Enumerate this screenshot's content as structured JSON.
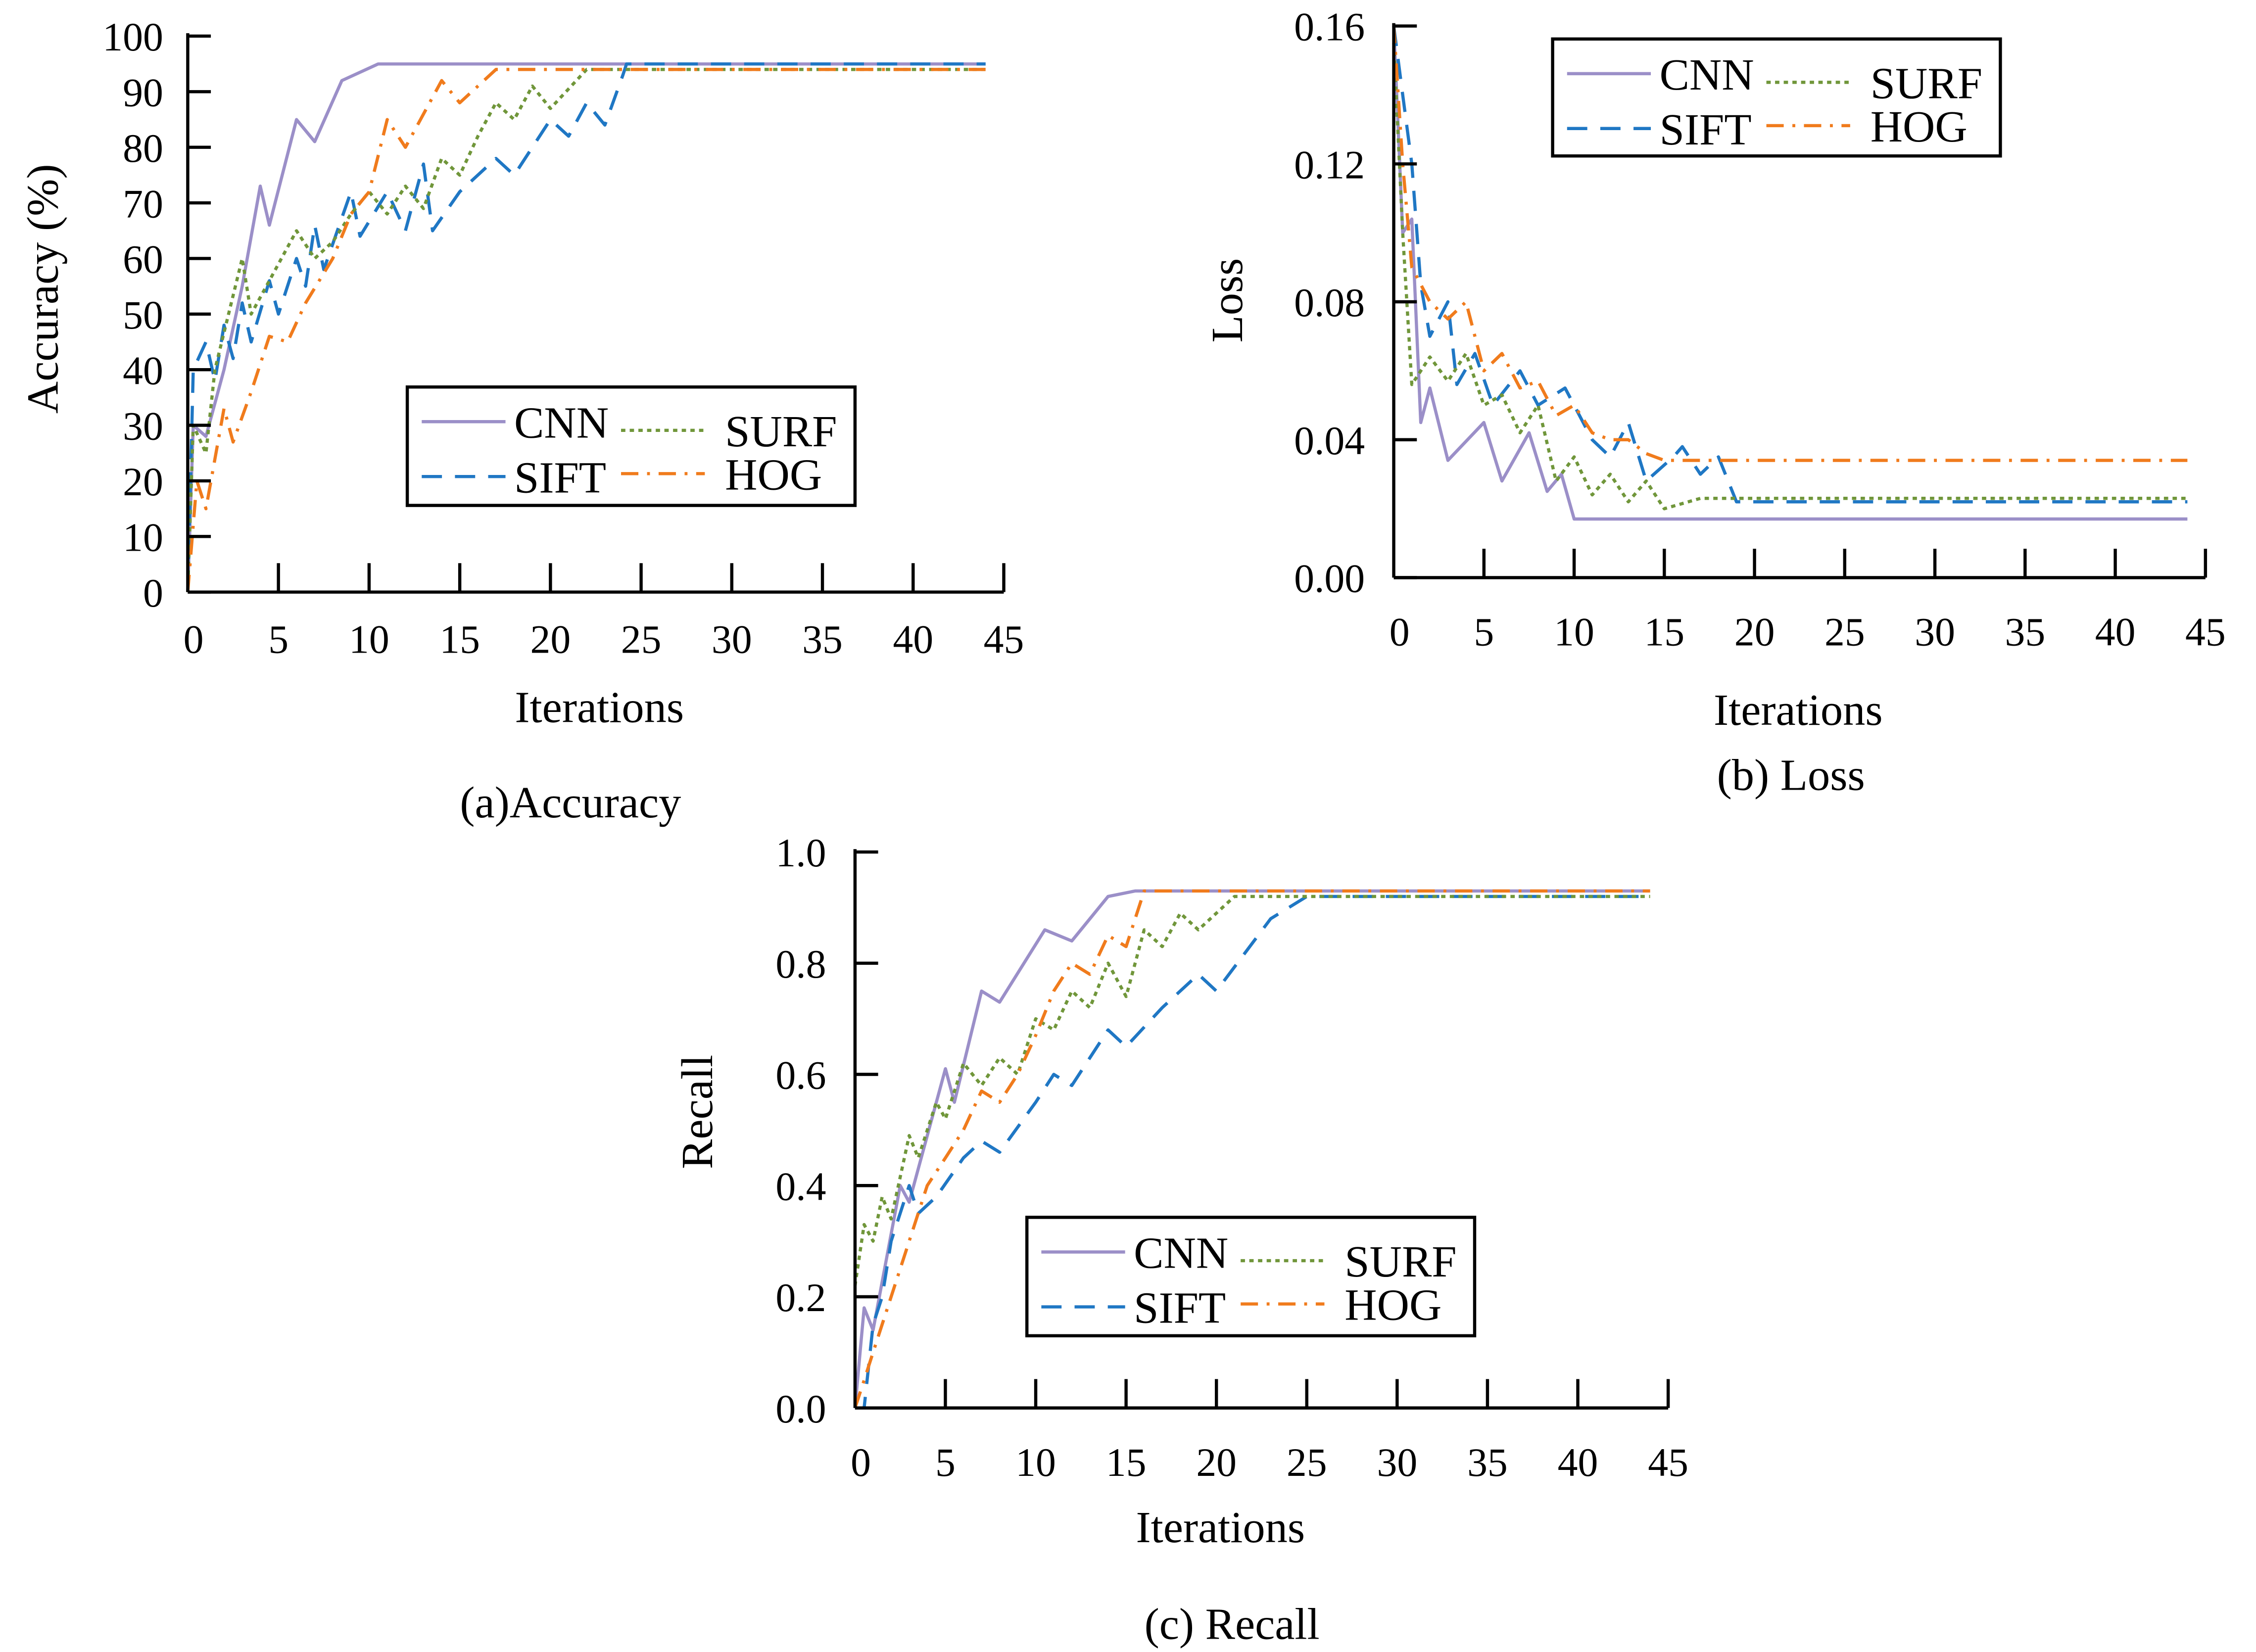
{
  "chart_data": [
    {
      "type": "line",
      "title": "(a)Accuracy",
      "xlabel": "Iterations",
      "ylabel": "Accuracy (%)",
      "xlim": [
        0,
        45
      ],
      "ylim": [
        0,
        100
      ],
      "xticks": [
        0,
        5,
        10,
        15,
        20,
        25,
        30,
        35,
        40,
        45
      ],
      "yticks": [
        0,
        10,
        20,
        30,
        40,
        50,
        60,
        70,
        80,
        90,
        100
      ],
      "ytick_labels": [
        "0",
        "10",
        "20",
        "30",
        "40",
        "50",
        "60",
        "70",
        "80",
        "90",
        "100"
      ],
      "legend": "center-right",
      "grid": false,
      "series": [
        {
          "name": "CNN",
          "color": "#9b8fc8",
          "style": "solid",
          "x": [
            0,
            0.3,
            1,
            2,
            3,
            4,
            4.5,
            6,
            7,
            8.5,
            10.5,
            44
          ],
          "y": [
            0,
            30,
            28,
            40,
            55,
            73,
            66,
            85,
            81,
            92,
            95,
            95
          ]
        },
        {
          "name": "SIFT",
          "color": "#1f77c4",
          "style": "dashed",
          "x": [
            0,
            0.3,
            1,
            1.5,
            2,
            2.5,
            3,
            3.5,
            4.5,
            5,
            6,
            6.5,
            7,
            7.5,
            9,
            9.5,
            11,
            12,
            13,
            13.5,
            15,
            17,
            18,
            20,
            21,
            22,
            23,
            24,
            24.2,
            44
          ],
          "y": [
            0,
            40,
            45,
            38,
            48,
            42,
            52,
            45,
            56,
            50,
            60,
            55,
            66,
            58,
            72,
            64,
            72,
            65,
            77,
            65,
            72,
            78,
            75,
            85,
            82,
            88,
            84,
            93,
            95,
            95
          ]
        },
        {
          "name": "SURF",
          "color": "#70963a",
          "style": "dotted",
          "x": [
            0,
            0.3,
            1,
            1.5,
            3,
            3.5,
            6,
            7,
            8,
            9,
            10,
            11,
            12,
            13,
            14,
            15,
            16,
            17,
            18,
            19,
            20,
            22,
            44
          ],
          "y": [
            0,
            30,
            25,
            40,
            60,
            50,
            65,
            60,
            63,
            68,
            72,
            68,
            73,
            69,
            78,
            75,
            82,
            88,
            85,
            91,
            87,
            94,
            94
          ]
        },
        {
          "name": "HOG",
          "color": "#f07b1c",
          "style": "dashdot",
          "x": [
            0,
            0.5,
            1,
            2,
            2.5,
            3.5,
            4.5,
            5.5,
            6.5,
            8,
            9,
            10,
            11,
            12,
            14,
            15,
            17,
            44
          ],
          "y": [
            0,
            20,
            15,
            33,
            27,
            36,
            46,
            45,
            52,
            60,
            68,
            72,
            85,
            80,
            92,
            88,
            94,
            94
          ]
        }
      ]
    },
    {
      "type": "line",
      "title": "(b) Loss",
      "xlabel": "Iterations",
      "ylabel": "Loss",
      "xlim": [
        0,
        45
      ],
      "ylim": [
        0,
        0.16
      ],
      "xticks": [
        0,
        5,
        10,
        15,
        20,
        25,
        30,
        35,
        40,
        45
      ],
      "yticks": [
        0,
        0.04,
        0.08,
        0.12,
        0.16
      ],
      "ytick_labels": [
        "0.00",
        "0.04",
        "0.08",
        "0.12",
        "0.16"
      ],
      "legend": "top-center",
      "grid": false,
      "series": [
        {
          "name": "CNN",
          "color": "#9b8fc8",
          "style": "solid",
          "x": [
            0,
            0.5,
            1,
            1.5,
            2,
            3,
            5,
            6,
            7.5,
            8.5,
            9.3,
            10,
            44
          ],
          "y": [
            0.16,
            0.1,
            0.104,
            0.045,
            0.055,
            0.034,
            0.045,
            0.028,
            0.042,
            0.025,
            0.03,
            0.017,
            0.017
          ]
        },
        {
          "name": "SIFT",
          "color": "#1f77c4",
          "style": "dashed",
          "x": [
            0,
            0.5,
            1,
            1.5,
            2,
            3,
            3.5,
            4.5,
            5.5,
            7,
            8,
            9.5,
            11,
            12,
            13,
            14,
            15.5,
            16,
            17,
            18,
            19,
            20,
            44
          ],
          "y": [
            0.16,
            0.14,
            0.12,
            0.085,
            0.07,
            0.08,
            0.056,
            0.065,
            0.05,
            0.06,
            0.05,
            0.055,
            0.04,
            0.035,
            0.045,
            0.028,
            0.035,
            0.038,
            0.03,
            0.035,
            0.022,
            0.022,
            0.022
          ]
        },
        {
          "name": "SURF",
          "color": "#70963a",
          "style": "dotted",
          "x": [
            0,
            0.5,
            1,
            2,
            3,
            4,
            5,
            6,
            7,
            8,
            9,
            10,
            11,
            12,
            13,
            14,
            15,
            17,
            44
          ],
          "y": [
            0.155,
            0.1,
            0.056,
            0.064,
            0.057,
            0.065,
            0.05,
            0.053,
            0.042,
            0.05,
            0.028,
            0.035,
            0.024,
            0.03,
            0.022,
            0.028,
            0.02,
            0.023,
            0.023
          ]
        },
        {
          "name": "HOG",
          "color": "#f07b1c",
          "style": "dashdot",
          "x": [
            0,
            0.5,
            1,
            2,
            3,
            4,
            5,
            6,
            7,
            8,
            9,
            10,
            11,
            12,
            13,
            14,
            15,
            44
          ],
          "y": [
            0.16,
            0.12,
            0.09,
            0.08,
            0.075,
            0.08,
            0.06,
            0.065,
            0.055,
            0.057,
            0.047,
            0.05,
            0.042,
            0.04,
            0.04,
            0.036,
            0.034,
            0.034
          ]
        }
      ]
    },
    {
      "type": "line",
      "title": "(c) Recall",
      "xlabel": "Iterations",
      "ylabel": "Recall",
      "xlim": [
        0,
        45
      ],
      "ylim": [
        0,
        1.0
      ],
      "xticks": [
        0,
        5,
        10,
        15,
        20,
        25,
        30,
        35,
        40,
        45
      ],
      "yticks": [
        0,
        0.2,
        0.4,
        0.6,
        0.8,
        1.0
      ],
      "ytick_labels": [
        "0.0",
        "0.2",
        "0.4",
        "0.6",
        "0.8",
        "1.0"
      ],
      "legend": "bottom-center",
      "grid": false,
      "series": [
        {
          "name": "CNN",
          "color": "#9b8fc8",
          "style": "solid",
          "x": [
            0,
            0.5,
            1,
            2.5,
            3,
            5,
            5.5,
            7,
            8,
            10.5,
            12,
            14,
            15.5,
            44
          ],
          "y": [
            0,
            0.18,
            0.14,
            0.4,
            0.37,
            0.61,
            0.55,
            0.75,
            0.73,
            0.86,
            0.84,
            0.92,
            0.93,
            0.93
          ]
        },
        {
          "name": "SIFT",
          "color": "#1f77c4",
          "style": "dashed",
          "x": [
            0,
            0.5,
            1,
            1.5,
            2,
            3,
            3.5,
            4.5,
            6,
            7,
            8,
            10,
            11,
            12,
            14,
            15,
            17,
            19,
            20,
            23,
            25,
            44
          ],
          "y": [
            0,
            0,
            0.15,
            0.2,
            0.3,
            0.4,
            0.35,
            0.38,
            0.45,
            0.48,
            0.46,
            0.55,
            0.6,
            0.58,
            0.68,
            0.65,
            0.72,
            0.78,
            0.75,
            0.88,
            0.92,
            0.92
          ]
        },
        {
          "name": "SURF",
          "color": "#70963a",
          "style": "dotted",
          "x": [
            0,
            0.5,
            1,
            1.5,
            2,
            3,
            3.5,
            4.5,
            5,
            6,
            7,
            8,
            9,
            10,
            11,
            12,
            13,
            14,
            15,
            16,
            17,
            18,
            19,
            21,
            44
          ],
          "y": [
            0.22,
            0.33,
            0.3,
            0.38,
            0.34,
            0.49,
            0.45,
            0.55,
            0.52,
            0.62,
            0.58,
            0.63,
            0.6,
            0.7,
            0.68,
            0.75,
            0.72,
            0.8,
            0.74,
            0.86,
            0.83,
            0.89,
            0.86,
            0.92,
            0.92
          ]
        },
        {
          "name": "HOG",
          "color": "#f07b1c",
          "style": "dashdot",
          "x": [
            0,
            0.5,
            1,
            2,
            3,
            4,
            5,
            6,
            7,
            8,
            9,
            10,
            11,
            12,
            13,
            14,
            15,
            16,
            44
          ],
          "y": [
            0,
            0.05,
            0.1,
            0.2,
            0.3,
            0.4,
            0.45,
            0.5,
            0.57,
            0.55,
            0.6,
            0.67,
            0.75,
            0.8,
            0.78,
            0.85,
            0.83,
            0.93,
            0.93
          ]
        }
      ]
    }
  ]
}
